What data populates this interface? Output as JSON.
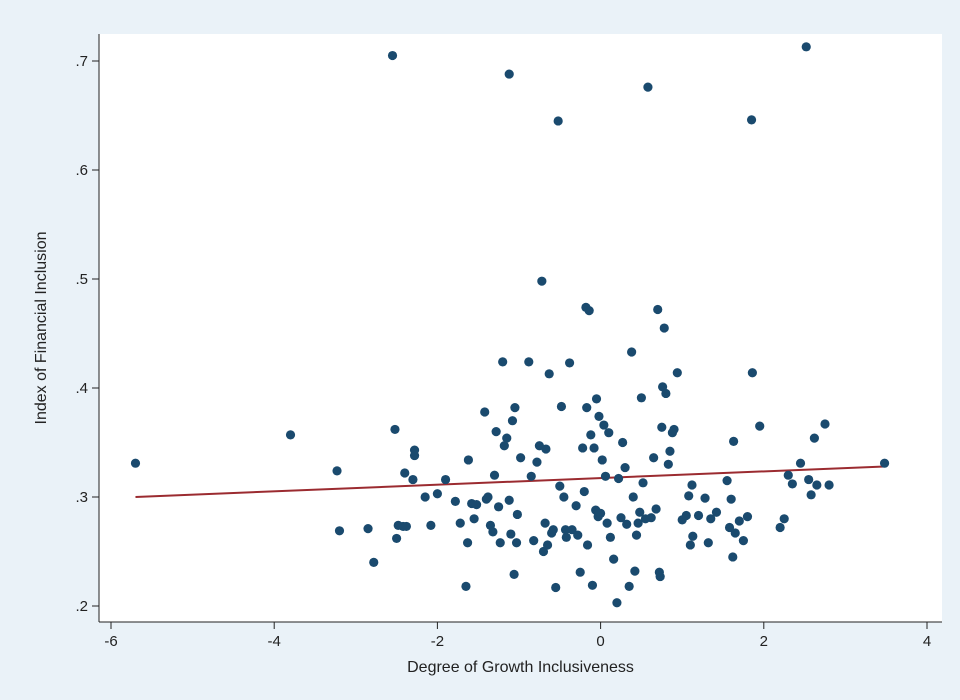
{
  "chart_data": {
    "type": "scatter",
    "title": "",
    "xlabel": "Degree of Growth Inclusiveness",
    "ylabel": "Index of Financial Inclusion",
    "xlim": [
      -6,
      4
    ],
    "ylim": [
      0.2,
      0.7
    ],
    "x_ticks": [
      -6,
      -4,
      -2,
      0,
      2,
      4
    ],
    "x_tick_labels": [
      "-6",
      "-4",
      "-2",
      "0",
      "2",
      "4"
    ],
    "y_ticks": [
      0.2,
      0.3,
      0.4,
      0.5,
      0.6,
      0.7
    ],
    "y_tick_labels": [
      ".2",
      ".3",
      ".4",
      ".5",
      ".6",
      ".7"
    ],
    "grid": false,
    "legend": "none",
    "colors": {
      "points": "#1a4a6e",
      "fit_line": "#9b2b30",
      "plot_background": "#ffffff",
      "outer_background": "#eaf2f8",
      "axis": "#222222"
    },
    "series": [
      {
        "values": [
          [
            -5.7,
            0.331
          ],
          [
            -3.8,
            0.357
          ],
          [
            -3.23,
            0.324
          ],
          [
            -3.2,
            0.269
          ],
          [
            -2.85,
            0.271
          ],
          [
            -2.78,
            0.24
          ],
          [
            -2.55,
            0.705
          ],
          [
            -2.52,
            0.362
          ],
          [
            -2.5,
            0.262
          ],
          [
            -2.48,
            0.274
          ],
          [
            -2.42,
            0.273
          ],
          [
            -2.4,
            0.322
          ],
          [
            -2.38,
            0.273
          ],
          [
            -2.3,
            0.316
          ],
          [
            -2.28,
            0.338
          ],
          [
            -2.28,
            0.343
          ],
          [
            -2.15,
            0.3
          ],
          [
            -2.08,
            0.274
          ],
          [
            -2.0,
            0.303
          ],
          [
            -1.9,
            0.316
          ],
          [
            -1.78,
            0.296
          ],
          [
            -1.72,
            0.276
          ],
          [
            -1.65,
            0.218
          ],
          [
            -1.63,
            0.258
          ],
          [
            -1.62,
            0.334
          ],
          [
            -1.58,
            0.294
          ],
          [
            -1.55,
            0.28
          ],
          [
            -1.52,
            0.293
          ],
          [
            -1.42,
            0.378
          ],
          [
            -1.4,
            0.298
          ],
          [
            -1.38,
            0.3
          ],
          [
            -1.35,
            0.274
          ],
          [
            -1.32,
            0.268
          ],
          [
            -1.3,
            0.32
          ],
          [
            -1.28,
            0.36
          ],
          [
            -1.25,
            0.291
          ],
          [
            -1.23,
            0.258
          ],
          [
            -1.2,
            0.424
          ],
          [
            -1.18,
            0.347
          ],
          [
            -1.15,
            0.354
          ],
          [
            -1.12,
            0.688
          ],
          [
            -1.12,
            0.297
          ],
          [
            -1.1,
            0.266
          ],
          [
            -1.08,
            0.37
          ],
          [
            -1.06,
            0.229
          ],
          [
            -1.05,
            0.382
          ],
          [
            -1.03,
            0.258
          ],
          [
            -1.02,
            0.284
          ],
          [
            -0.98,
            0.336
          ],
          [
            -0.88,
            0.424
          ],
          [
            -0.85,
            0.319
          ],
          [
            -0.82,
            0.26
          ],
          [
            -0.78,
            0.332
          ],
          [
            -0.75,
            0.347
          ],
          [
            -0.72,
            0.498
          ],
          [
            -0.7,
            0.25
          ],
          [
            -0.68,
            0.276
          ],
          [
            -0.67,
            0.344
          ],
          [
            -0.65,
            0.256
          ],
          [
            -0.63,
            0.413
          ],
          [
            -0.6,
            0.267
          ],
          [
            -0.58,
            0.27
          ],
          [
            -0.55,
            0.217
          ],
          [
            -0.52,
            0.645
          ],
          [
            -0.5,
            0.31
          ],
          [
            -0.48,
            0.383
          ],
          [
            -0.45,
            0.3
          ],
          [
            -0.43,
            0.27
          ],
          [
            -0.42,
            0.263
          ],
          [
            -0.38,
            0.423
          ],
          [
            -0.35,
            0.27
          ],
          [
            -0.3,
            0.292
          ],
          [
            -0.28,
            0.265
          ],
          [
            -0.25,
            0.231
          ],
          [
            -0.22,
            0.345
          ],
          [
            -0.2,
            0.305
          ],
          [
            -0.18,
            0.474
          ],
          [
            -0.17,
            0.382
          ],
          [
            -0.16,
            0.256
          ],
          [
            -0.14,
            0.471
          ],
          [
            -0.12,
            0.357
          ],
          [
            -0.1,
            0.219
          ],
          [
            -0.08,
            0.345
          ],
          [
            -0.06,
            0.288
          ],
          [
            -0.05,
            0.39
          ],
          [
            -0.03,
            0.282
          ],
          [
            -0.02,
            0.374
          ],
          [
            0.0,
            0.285
          ],
          [
            0.02,
            0.334
          ],
          [
            0.04,
            0.366
          ],
          [
            0.06,
            0.319
          ],
          [
            0.08,
            0.276
          ],
          [
            0.1,
            0.359
          ],
          [
            0.12,
            0.263
          ],
          [
            0.16,
            0.243
          ],
          [
            0.2,
            0.203
          ],
          [
            0.22,
            0.317
          ],
          [
            0.25,
            0.281
          ],
          [
            0.27,
            0.35
          ],
          [
            0.3,
            0.327
          ],
          [
            0.32,
            0.275
          ],
          [
            0.35,
            0.218
          ],
          [
            0.38,
            0.433
          ],
          [
            0.4,
            0.3
          ],
          [
            0.42,
            0.232
          ],
          [
            0.44,
            0.265
          ],
          [
            0.46,
            0.276
          ],
          [
            0.48,
            0.286
          ],
          [
            0.5,
            0.391
          ],
          [
            0.52,
            0.313
          ],
          [
            0.55,
            0.28
          ],
          [
            0.58,
            0.676
          ],
          [
            0.62,
            0.281
          ],
          [
            0.65,
            0.336
          ],
          [
            0.68,
            0.289
          ],
          [
            0.7,
            0.472
          ],
          [
            0.72,
            0.231
          ],
          [
            0.73,
            0.227
          ],
          [
            0.75,
            0.364
          ],
          [
            0.76,
            0.401
          ],
          [
            0.78,
            0.455
          ],
          [
            0.8,
            0.395
          ],
          [
            0.83,
            0.33
          ],
          [
            0.85,
            0.342
          ],
          [
            0.88,
            0.359
          ],
          [
            0.9,
            0.362
          ],
          [
            0.94,
            0.414
          ],
          [
            1.0,
            0.279
          ],
          [
            1.05,
            0.283
          ],
          [
            1.08,
            0.301
          ],
          [
            1.1,
            0.256
          ],
          [
            1.12,
            0.311
          ],
          [
            1.13,
            0.264
          ],
          [
            1.2,
            0.283
          ],
          [
            1.28,
            0.299
          ],
          [
            1.32,
            0.258
          ],
          [
            1.35,
            0.28
          ],
          [
            1.42,
            0.286
          ],
          [
            1.55,
            0.315
          ],
          [
            1.58,
            0.272
          ],
          [
            1.6,
            0.298
          ],
          [
            1.62,
            0.245
          ],
          [
            1.63,
            0.351
          ],
          [
            1.65,
            0.267
          ],
          [
            1.7,
            0.278
          ],
          [
            1.75,
            0.26
          ],
          [
            1.8,
            0.282
          ],
          [
            1.85,
            0.646
          ],
          [
            1.86,
            0.414
          ],
          [
            1.95,
            0.365
          ],
          [
            2.2,
            0.272
          ],
          [
            2.25,
            0.28
          ],
          [
            2.3,
            0.32
          ],
          [
            2.35,
            0.312
          ],
          [
            2.45,
            0.331
          ],
          [
            2.52,
            0.713
          ],
          [
            2.55,
            0.316
          ],
          [
            2.58,
            0.302
          ],
          [
            2.62,
            0.354
          ],
          [
            2.65,
            0.311
          ],
          [
            2.75,
            0.367
          ],
          [
            2.8,
            0.311
          ],
          [
            3.48,
            0.331
          ]
        ]
      }
    ],
    "fit_line": {
      "x": [
        -5.7,
        3.48
      ],
      "y": [
        0.3,
        0.328
      ]
    }
  }
}
